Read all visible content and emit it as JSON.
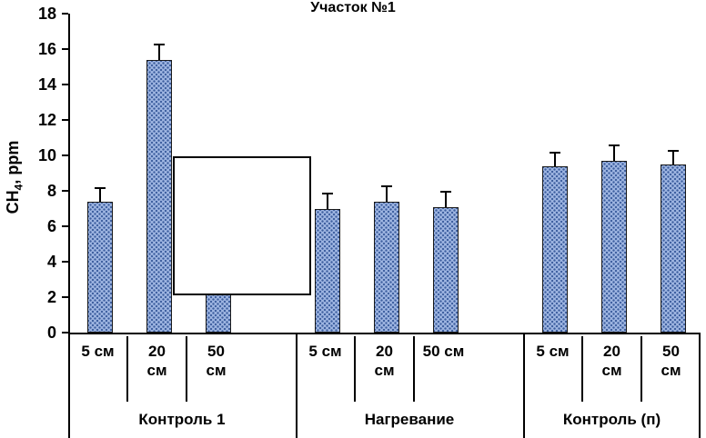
{
  "title": "Участок №1",
  "y_axis": {
    "label_prefix": "CH",
    "label_sub": "4",
    "label_suffix": ", ppm"
  },
  "chart_data": {
    "type": "bar",
    "title": "Участок №1",
    "ylabel": "CH4, ppm",
    "ylim": [
      0,
      18
    ],
    "yticks": [
      0,
      2,
      4,
      6,
      8,
      10,
      12,
      14,
      16,
      18
    ],
    "grid": false,
    "legend": "none",
    "groups": [
      {
        "label": "Контроль 1",
        "categories": [
          "5 см",
          "20\nсм",
          "50\nсм"
        ],
        "values": [
          7.4,
          15.4,
          2.3
        ],
        "errors_plus": [
          0.8,
          0.9,
          0
        ]
      },
      {
        "label": "Нагревание",
        "categories": [
          "5 см",
          "20\nсм",
          "50 см"
        ],
        "values": [
          7.0,
          7.4,
          7.1
        ],
        "errors_plus": [
          0.9,
          0.9,
          0.9
        ]
      },
      {
        "label": "Контроль (п)",
        "categories": [
          "5 см",
          "20\nсм",
          "50\nсм"
        ],
        "values": [
          9.4,
          9.7,
          9.5
        ],
        "errors_plus": [
          0.8,
          0.9,
          0.8
        ]
      }
    ],
    "colors": {
      "bar_fill": "#9fb6e2",
      "bar_dots": "#3d5e9e",
      "bar_border": "#1a1a1a",
      "axis": "#000000"
    },
    "overlay_box": {
      "note": "empty white rectangle overlapping plot area",
      "x": 190,
      "y": 172,
      "width": 152,
      "height": 153
    }
  }
}
